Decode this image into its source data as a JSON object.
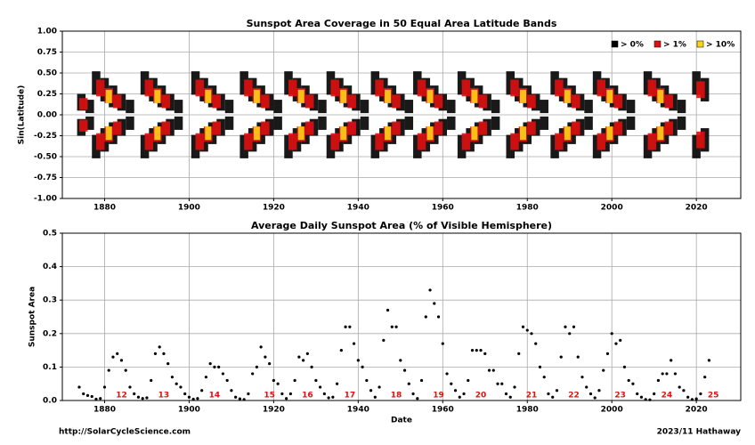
{
  "chart_data": [
    {
      "type": "heatmap",
      "title": "Sunspot Area Coverage in 50 Equal Area Latitude Bands",
      "y_label": "Sin(Latitude)",
      "xlim": [
        1870,
        2030.5
      ],
      "xticks": [
        1880,
        1900,
        1920,
        1940,
        1960,
        1980,
        2000,
        2020
      ],
      "ylim": [
        -1,
        1
      ],
      "yticks": [
        {
          "value": -1,
          "label": "-1.00"
        },
        {
          "value": -0.75,
          "label": "-0.75"
        },
        {
          "value": -0.5,
          "label": "-0.50"
        },
        {
          "value": -0.25,
          "label": "-0.25"
        },
        {
          "value": 0,
          "label": "0.00"
        },
        {
          "value": 0.25,
          "label": "0.25"
        },
        {
          "value": 0.5,
          "label": "0.50"
        },
        {
          "value": 0.75,
          "label": "0.75"
        },
        {
          "value": 1,
          "label": "1.00"
        }
      ],
      "grid": true,
      "legend": "upper right",
      "series": [
        {
          "name": "> 0%",
          "color": "#000000",
          "x": [
            1874.5,
            1876.5,
            1878,
            1880,
            1882,
            1884,
            1886,
            1889.5,
            1891.5,
            1893.5,
            1895.5,
            1897.5,
            1901.5,
            1903.5,
            1905.5,
            1907.5,
            1909.5,
            1913,
            1915,
            1917,
            1919,
            1921,
            1923.5,
            1925.5,
            1927.5,
            1929.5,
            1931.5,
            1933.5,
            1935.5,
            1937.5,
            1939.5,
            1941.5,
            1944,
            1946,
            1948,
            1950,
            1952,
            1954,
            1956,
            1958,
            1960,
            1962,
            1964.5,
            1966.5,
            1968.5,
            1970.5,
            1972.5,
            1976,
            1978,
            1980,
            1982,
            1984,
            1986.5,
            1988.5,
            1990.5,
            1992.5,
            1994.5,
            1996.5,
            1998.5,
            2000.5,
            2002.5,
            2004.5,
            2008.5,
            2010.5,
            2012.5,
            2014.5,
            2016.5,
            2020,
            2022
          ],
          "n_low": [
            0.05,
            0.02,
            0.24,
            0.16,
            0.09,
            0.05,
            0.02,
            0.24,
            0.16,
            0.09,
            0.05,
            0.02,
            0.24,
            0.16,
            0.09,
            0.05,
            0.02,
            0.24,
            0.16,
            0.09,
            0.05,
            0.02,
            0.24,
            0.16,
            0.09,
            0.05,
            0.02,
            0.24,
            0.16,
            0.09,
            0.05,
            0.02,
            0.24,
            0.16,
            0.09,
            0.05,
            0.02,
            0.24,
            0.16,
            0.09,
            0.05,
            0.02,
            0.24,
            0.16,
            0.09,
            0.05,
            0.02,
            0.24,
            0.16,
            0.09,
            0.05,
            0.02,
            0.24,
            0.16,
            0.09,
            0.05,
            0.02,
            0.24,
            0.16,
            0.09,
            0.05,
            0.02,
            0.24,
            0.16,
            0.09,
            0.05,
            0.02,
            0.24,
            0.16
          ],
          "n_high": [
            0.25,
            0.18,
            0.52,
            0.44,
            0.35,
            0.25,
            0.18,
            0.52,
            0.44,
            0.35,
            0.25,
            0.18,
            0.52,
            0.44,
            0.35,
            0.25,
            0.18,
            0.52,
            0.44,
            0.35,
            0.25,
            0.18,
            0.52,
            0.44,
            0.35,
            0.25,
            0.18,
            0.52,
            0.44,
            0.35,
            0.25,
            0.18,
            0.52,
            0.44,
            0.35,
            0.25,
            0.18,
            0.52,
            0.44,
            0.35,
            0.25,
            0.18,
            0.52,
            0.44,
            0.35,
            0.25,
            0.18,
            0.52,
            0.44,
            0.35,
            0.25,
            0.18,
            0.52,
            0.44,
            0.35,
            0.25,
            0.18,
            0.52,
            0.44,
            0.35,
            0.25,
            0.18,
            0.52,
            0.44,
            0.35,
            0.25,
            0.18,
            0.52,
            0.44
          ],
          "s_low": [
            -0.25,
            -0.18,
            -0.52,
            -0.44,
            -0.35,
            -0.25,
            -0.18,
            -0.52,
            -0.44,
            -0.35,
            -0.25,
            -0.18,
            -0.52,
            -0.44,
            -0.35,
            -0.25,
            -0.18,
            -0.52,
            -0.44,
            -0.35,
            -0.25,
            -0.18,
            -0.52,
            -0.44,
            -0.35,
            -0.25,
            -0.18,
            -0.52,
            -0.44,
            -0.35,
            -0.25,
            -0.18,
            -0.52,
            -0.44,
            -0.35,
            -0.25,
            -0.18,
            -0.52,
            -0.44,
            -0.35,
            -0.25,
            -0.18,
            -0.52,
            -0.44,
            -0.35,
            -0.25,
            -0.18,
            -0.52,
            -0.44,
            -0.35,
            -0.25,
            -0.18,
            -0.52,
            -0.44,
            -0.35,
            -0.25,
            -0.18,
            -0.52,
            -0.44,
            -0.35,
            -0.25,
            -0.18,
            -0.52,
            -0.44,
            -0.35,
            -0.25,
            -0.18,
            -0.52,
            -0.44
          ],
          "s_high": [
            -0.05,
            -0.02,
            -0.24,
            -0.16,
            -0.09,
            -0.05,
            -0.02,
            -0.24,
            -0.16,
            -0.09,
            -0.05,
            -0.02,
            -0.24,
            -0.16,
            -0.09,
            -0.05,
            -0.02,
            -0.24,
            -0.16,
            -0.09,
            -0.05,
            -0.02,
            -0.24,
            -0.16,
            -0.09,
            -0.05,
            -0.02,
            -0.24,
            -0.16,
            -0.09,
            -0.05,
            -0.02,
            -0.24,
            -0.16,
            -0.09,
            -0.05,
            -0.02,
            -0.24,
            -0.16,
            -0.09,
            -0.05,
            -0.02,
            -0.24,
            -0.16,
            -0.09,
            -0.05,
            -0.02,
            -0.24,
            -0.16,
            -0.09,
            -0.05,
            -0.02,
            -0.24,
            -0.16,
            -0.09,
            -0.05,
            -0.02,
            -0.24,
            -0.16,
            -0.09,
            -0.05,
            -0.02,
            -0.24,
            -0.16,
            -0.09,
            -0.05,
            -0.02,
            -0.24,
            -0.16
          ]
        },
        {
          "name": "> 1%",
          "color": "#e01010",
          "x": [
            1875,
            1879,
            1881,
            1883,
            1890.5,
            1892.5,
            1894.5,
            1902.5,
            1904.5,
            1906.5,
            1914,
            1916,
            1918,
            1924.5,
            1926.5,
            1928.5,
            1934.5,
            1936.5,
            1938.5,
            1945,
            1947,
            1949,
            1955,
            1957,
            1959,
            1965.5,
            1967.5,
            1969.5,
            1977,
            1979,
            1981,
            1987.5,
            1989.5,
            1991.5,
            1997.5,
            1999.5,
            2001.5,
            2009.5,
            2011.5,
            2013.5,
            2021
          ],
          "n_low": [
            0.06,
            0.22,
            0.14,
            0.08,
            0.22,
            0.14,
            0.08,
            0.22,
            0.14,
            0.08,
            0.22,
            0.14,
            0.08,
            0.22,
            0.14,
            0.08,
            0.22,
            0.14,
            0.08,
            0.22,
            0.14,
            0.08,
            0.22,
            0.14,
            0.08,
            0.22,
            0.14,
            0.08,
            0.22,
            0.14,
            0.08,
            0.22,
            0.14,
            0.08,
            0.22,
            0.14,
            0.08,
            0.22,
            0.14,
            0.08,
            0.2
          ],
          "n_high": [
            0.2,
            0.42,
            0.32,
            0.24,
            0.42,
            0.32,
            0.24,
            0.42,
            0.32,
            0.24,
            0.42,
            0.32,
            0.24,
            0.42,
            0.32,
            0.24,
            0.42,
            0.32,
            0.24,
            0.42,
            0.32,
            0.24,
            0.42,
            0.32,
            0.24,
            0.42,
            0.32,
            0.24,
            0.42,
            0.32,
            0.24,
            0.42,
            0.32,
            0.24,
            0.42,
            0.32,
            0.24,
            0.42,
            0.32,
            0.24,
            0.4
          ],
          "s_low": [
            -0.2,
            -0.42,
            -0.32,
            -0.24,
            -0.42,
            -0.32,
            -0.24,
            -0.42,
            -0.32,
            -0.24,
            -0.42,
            -0.32,
            -0.24,
            -0.42,
            -0.32,
            -0.24,
            -0.42,
            -0.32,
            -0.24,
            -0.42,
            -0.32,
            -0.24,
            -0.42,
            -0.32,
            -0.24,
            -0.42,
            -0.32,
            -0.24,
            -0.42,
            -0.32,
            -0.24,
            -0.42,
            -0.32,
            -0.24,
            -0.42,
            -0.32,
            -0.24,
            -0.42,
            -0.32,
            -0.24,
            -0.4
          ],
          "s_high": [
            -0.06,
            -0.22,
            -0.14,
            -0.08,
            -0.22,
            -0.14,
            -0.08,
            -0.22,
            -0.14,
            -0.08,
            -0.22,
            -0.14,
            -0.08,
            -0.22,
            -0.14,
            -0.08,
            -0.22,
            -0.14,
            -0.08,
            -0.22,
            -0.14,
            -0.08,
            -0.22,
            -0.14,
            -0.08,
            -0.22,
            -0.14,
            -0.08,
            -0.22,
            -0.14,
            -0.08,
            -0.22,
            -0.14,
            -0.08,
            -0.22,
            -0.14,
            -0.08,
            -0.22,
            -0.14,
            -0.08,
            -0.2
          ]
        },
        {
          "name": "> 10%",
          "color": "#ffd21a",
          "x": [
            1881,
            1892.5,
            1904.5,
            1916,
            1926.5,
            1936.5,
            1947,
            1957,
            1967.5,
            1979,
            1989.5,
            1999.5,
            2011.5
          ],
          "n_low": [
            0.14,
            0.14,
            0.14,
            0.14,
            0.14,
            0.14,
            0.14,
            0.14,
            0.14,
            0.14,
            0.14,
            0.14,
            0.14
          ],
          "n_high": [
            0.3,
            0.3,
            0.3,
            0.3,
            0.3,
            0.3,
            0.3,
            0.3,
            0.3,
            0.3,
            0.3,
            0.3,
            0.3
          ],
          "s_low": [
            -0.3,
            -0.3,
            -0.3,
            -0.3,
            -0.3,
            -0.3,
            -0.3,
            -0.3,
            -0.3,
            -0.3,
            -0.3,
            -0.3,
            -0.3
          ],
          "s_high": [
            -0.14,
            -0.14,
            -0.14,
            -0.14,
            -0.14,
            -0.14,
            -0.14,
            -0.14,
            -0.14,
            -0.14,
            -0.14,
            -0.14,
            -0.14
          ]
        }
      ]
    },
    {
      "type": "scatter",
      "title": "Average Daily Sunspot Area (% of Visible Hemisphere)",
      "y_label": "Sunspot Area",
      "x_label": "Date",
      "xlim": [
        1870,
        2030.5
      ],
      "xticks": [
        1880,
        1900,
        1920,
        1940,
        1960,
        1980,
        2000,
        2020
      ],
      "ylim": [
        0,
        0.5
      ],
      "yticks": [
        {
          "value": 0,
          "label": "0.0"
        },
        0.1,
        0.2,
        0.3,
        0.4,
        0.5
      ],
      "grid": true,
      "color": "#000000",
      "x": [
        1874,
        1875,
        1876,
        1877,
        1878,
        1879,
        1880,
        1881,
        1882,
        1883,
        1884,
        1885,
        1886,
        1887,
        1888,
        1889,
        1890,
        1891,
        1892,
        1893,
        1894,
        1895,
        1896,
        1897,
        1898,
        1899,
        1900,
        1901,
        1902,
        1903,
        1904,
        1905,
        1906,
        1907,
        1908,
        1909,
        1910,
        1911,
        1912,
        1913,
        1914,
        1915,
        1916,
        1917,
        1918,
        1919,
        1920,
        1921,
        1922,
        1923,
        1924,
        1925,
        1926,
        1927,
        1928,
        1929,
        1930,
        1931,
        1932,
        1933,
        1934,
        1935,
        1936,
        1937,
        1938,
        1939,
        1940,
        1941,
        1942,
        1943,
        1944,
        1945,
        1946,
        1947,
        1948,
        1949,
        1950,
        1951,
        1952,
        1953,
        1954,
        1955,
        1956,
        1957,
        1958,
        1959,
        1960,
        1961,
        1962,
        1963,
        1964,
        1965,
        1966,
        1967,
        1968,
        1969,
        1970,
        1971,
        1972,
        1973,
        1974,
        1975,
        1976,
        1977,
        1978,
        1979,
        1980,
        1981,
        1982,
        1983,
        1984,
        1985,
        1986,
        1987,
        1988,
        1989,
        1990,
        1991,
        1992,
        1993,
        1994,
        1995,
        1996,
        1997,
        1998,
        1999,
        2000,
        2001,
        2002,
        2003,
        2004,
        2005,
        2006,
        2007,
        2008,
        2009,
        2010,
        2011,
        2012,
        2013,
        2014,
        2015,
        2016,
        2017,
        2018,
        2019,
        2020,
        2021,
        2022,
        2023
      ],
      "values": [
        0.04,
        0.02,
        0.015,
        0.012,
        0.004,
        0.006,
        0.04,
        0.09,
        0.13,
        0.14,
        0.12,
        0.09,
        0.04,
        0.02,
        0.01,
        0.006,
        0.008,
        0.06,
        0.14,
        0.16,
        0.14,
        0.11,
        0.07,
        0.05,
        0.04,
        0.02,
        0.01,
        0.004,
        0.006,
        0.03,
        0.07,
        0.11,
        0.1,
        0.1,
        0.08,
        0.06,
        0.03,
        0.01,
        0.005,
        0.003,
        0.02,
        0.08,
        0.1,
        0.16,
        0.13,
        0.11,
        0.06,
        0.05,
        0.02,
        0.006,
        0.02,
        0.06,
        0.13,
        0.12,
        0.14,
        0.1,
        0.06,
        0.04,
        0.02,
        0.008,
        0.01,
        0.05,
        0.15,
        0.22,
        0.22,
        0.17,
        0.12,
        0.1,
        0.06,
        0.03,
        0.01,
        0.04,
        0.18,
        0.27,
        0.22,
        0.22,
        0.12,
        0.09,
        0.05,
        0.02,
        0.006,
        0.06,
        0.25,
        0.33,
        0.29,
        0.25,
        0.17,
        0.08,
        0.05,
        0.03,
        0.01,
        0.02,
        0.06,
        0.15,
        0.15,
        0.15,
        0.14,
        0.09,
        0.09,
        0.05,
        0.05,
        0.02,
        0.01,
        0.04,
        0.14,
        0.22,
        0.21,
        0.2,
        0.17,
        0.1,
        0.07,
        0.02,
        0.01,
        0.03,
        0.13,
        0.22,
        0.2,
        0.22,
        0.13,
        0.07,
        0.04,
        0.02,
        0.008,
        0.03,
        0.09,
        0.14,
        0.2,
        0.17,
        0.18,
        0.1,
        0.06,
        0.05,
        0.02,
        0.01,
        0.003,
        0.002,
        0.02,
        0.06,
        0.08,
        0.08,
        0.12,
        0.08,
        0.04,
        0.03,
        0.01,
        0.003,
        0.005,
        0.02,
        0.07,
        0.12
      ],
      "cycle_labels": [
        {
          "text": "12",
          "x": 1884
        },
        {
          "text": "13",
          "x": 1894
        },
        {
          "text": "14",
          "x": 1906
        },
        {
          "text": "15",
          "x": 1919
        },
        {
          "text": "16",
          "x": 1928
        },
        {
          "text": "17",
          "x": 1938
        },
        {
          "text": "18",
          "x": 1949
        },
        {
          "text": "19",
          "x": 1959
        },
        {
          "text": "20",
          "x": 1969
        },
        {
          "text": "21",
          "x": 1981
        },
        {
          "text": "22",
          "x": 1991
        },
        {
          "text": "23",
          "x": 2002
        },
        {
          "text": "24",
          "x": 2013
        },
        {
          "text": "25",
          "x": 2024
        }
      ]
    }
  ],
  "footer": {
    "left": "http://SolarCycleScience.com",
    "right": "2023/11 Hathaway"
  }
}
